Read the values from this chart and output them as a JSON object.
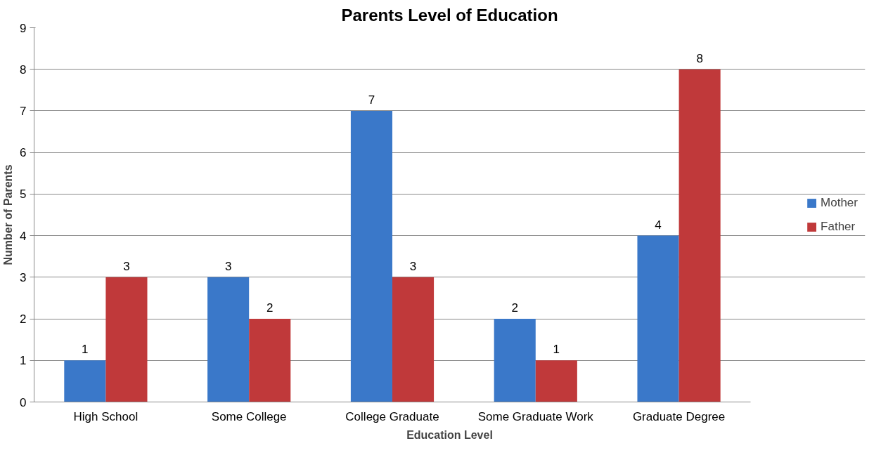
{
  "chart_data": {
    "type": "bar",
    "title": "Parents Level of Education",
    "xlabel": "Education Level",
    "ylabel": "Number of Parents",
    "categories": [
      "High School",
      "Some College",
      "College Graduate",
      "Some Graduate Work",
      "Graduate Degree"
    ],
    "series": [
      {
        "name": "Mother",
        "color": "#3a78c9",
        "values": [
          1,
          3,
          7,
          2,
          4
        ]
      },
      {
        "name": "Father",
        "color": "#c0393a",
        "values": [
          3,
          2,
          3,
          1,
          8
        ]
      }
    ],
    "ylim": [
      0,
      9
    ],
    "yticks": [
      0,
      1,
      2,
      3,
      4,
      5,
      6,
      7,
      8,
      9
    ],
    "grid": "y",
    "legend": "right",
    "data_labels": true
  }
}
